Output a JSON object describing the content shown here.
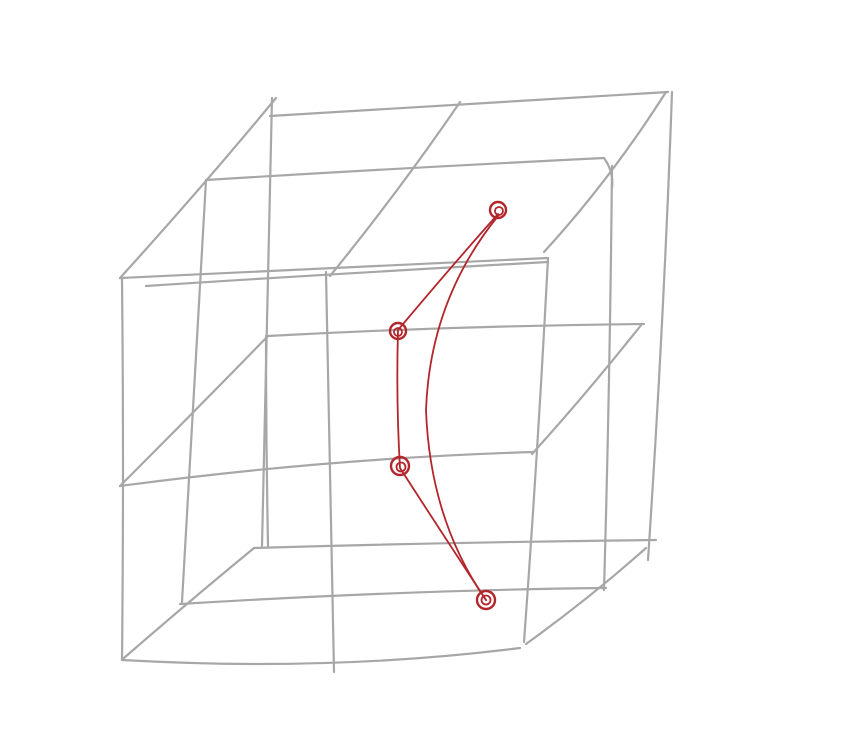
{
  "colors": {
    "background": "#ffffff",
    "grid": "#a7a7a7",
    "curve": "#b3262b"
  },
  "diagram": {
    "kind": "hand-drawn 3D lattice cube (2x2x2 cells) with a red curve through four nodes",
    "lattice_cells": [
      2,
      2,
      2
    ],
    "node_count": 4,
    "curve_count": 2
  }
}
